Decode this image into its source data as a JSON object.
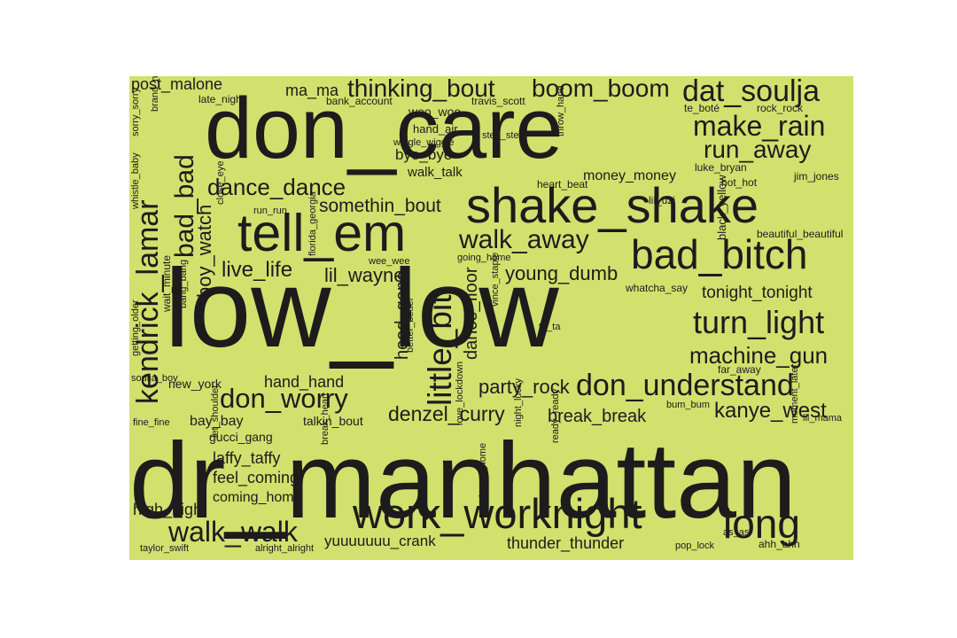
{
  "cloud": {
    "background": "#d2e06e",
    "text_color": "#1c1c1c",
    "words": [
      "dr_manhattan",
      "low_low",
      "don_care",
      "shake_shake",
      "tell_em",
      "work_worknight",
      "bad_bitch",
      "long",
      "kendrick_lamar",
      "little_bit",
      "turn_light",
      "don_understand",
      "dat_soulja",
      "thinking_bout",
      "boom_boom",
      "walk_away",
      "walk_walk",
      "make_rain",
      "run_away",
      "bad_bad",
      "don_worry",
      "dance_dance",
      "machine_gun",
      "kanye_west",
      "denzel_curry",
      "live_life",
      "lil_wayne",
      "young_dumb",
      "somethin_bout",
      "party_rock",
      "tonight_tonight",
      "boy_watch",
      "head_gone",
      "dance_floor",
      "post_malone",
      "ma_ma",
      "break_break",
      "hand_hand",
      "laffy_taffy",
      "feel_coming",
      "high_high",
      "coming_home",
      "bye_bye",
      "money_money",
      "thunder_thunder",
      "yuuuuuuu_crank",
      "walk_talk",
      "woo_woo",
      "bay_bay",
      "gucci_gang",
      "talkin_bout",
      "new_york",
      "hand_air",
      "late_night",
      "bank_account",
      "travis_scott",
      "te_boté",
      "rock_rock",
      "jim_jones",
      "hot_hot",
      "luke_bryan",
      "heart_beat",
      "lil_uzi",
      "beautiful_beautiful",
      "whatcha_say",
      "far_away",
      "black_yellow",
      "going_home",
      "wee_wee",
      "step_step",
      "throw_hand",
      "wiggle_wiggle",
      "sorry_sorry",
      "brand_new",
      "whistle_baby",
      "close_eye",
      "run_run",
      "florida_georgia",
      "wait_minute",
      "bang_bang",
      "getting_older",
      "soulja_boy",
      "fine_fine",
      "better_better",
      "vince_staple",
      "ta_ta",
      "bum_bum",
      "lil_mama",
      "moment_later",
      "ready_ready",
      "night_lucky",
      "love_lockdown",
      "home_home",
      "break_heart",
      "let_shoulder",
      "taylor_swift",
      "alright_alright",
      "pop_lock",
      "as_as",
      "ahh_ahh"
    ]
  }
}
